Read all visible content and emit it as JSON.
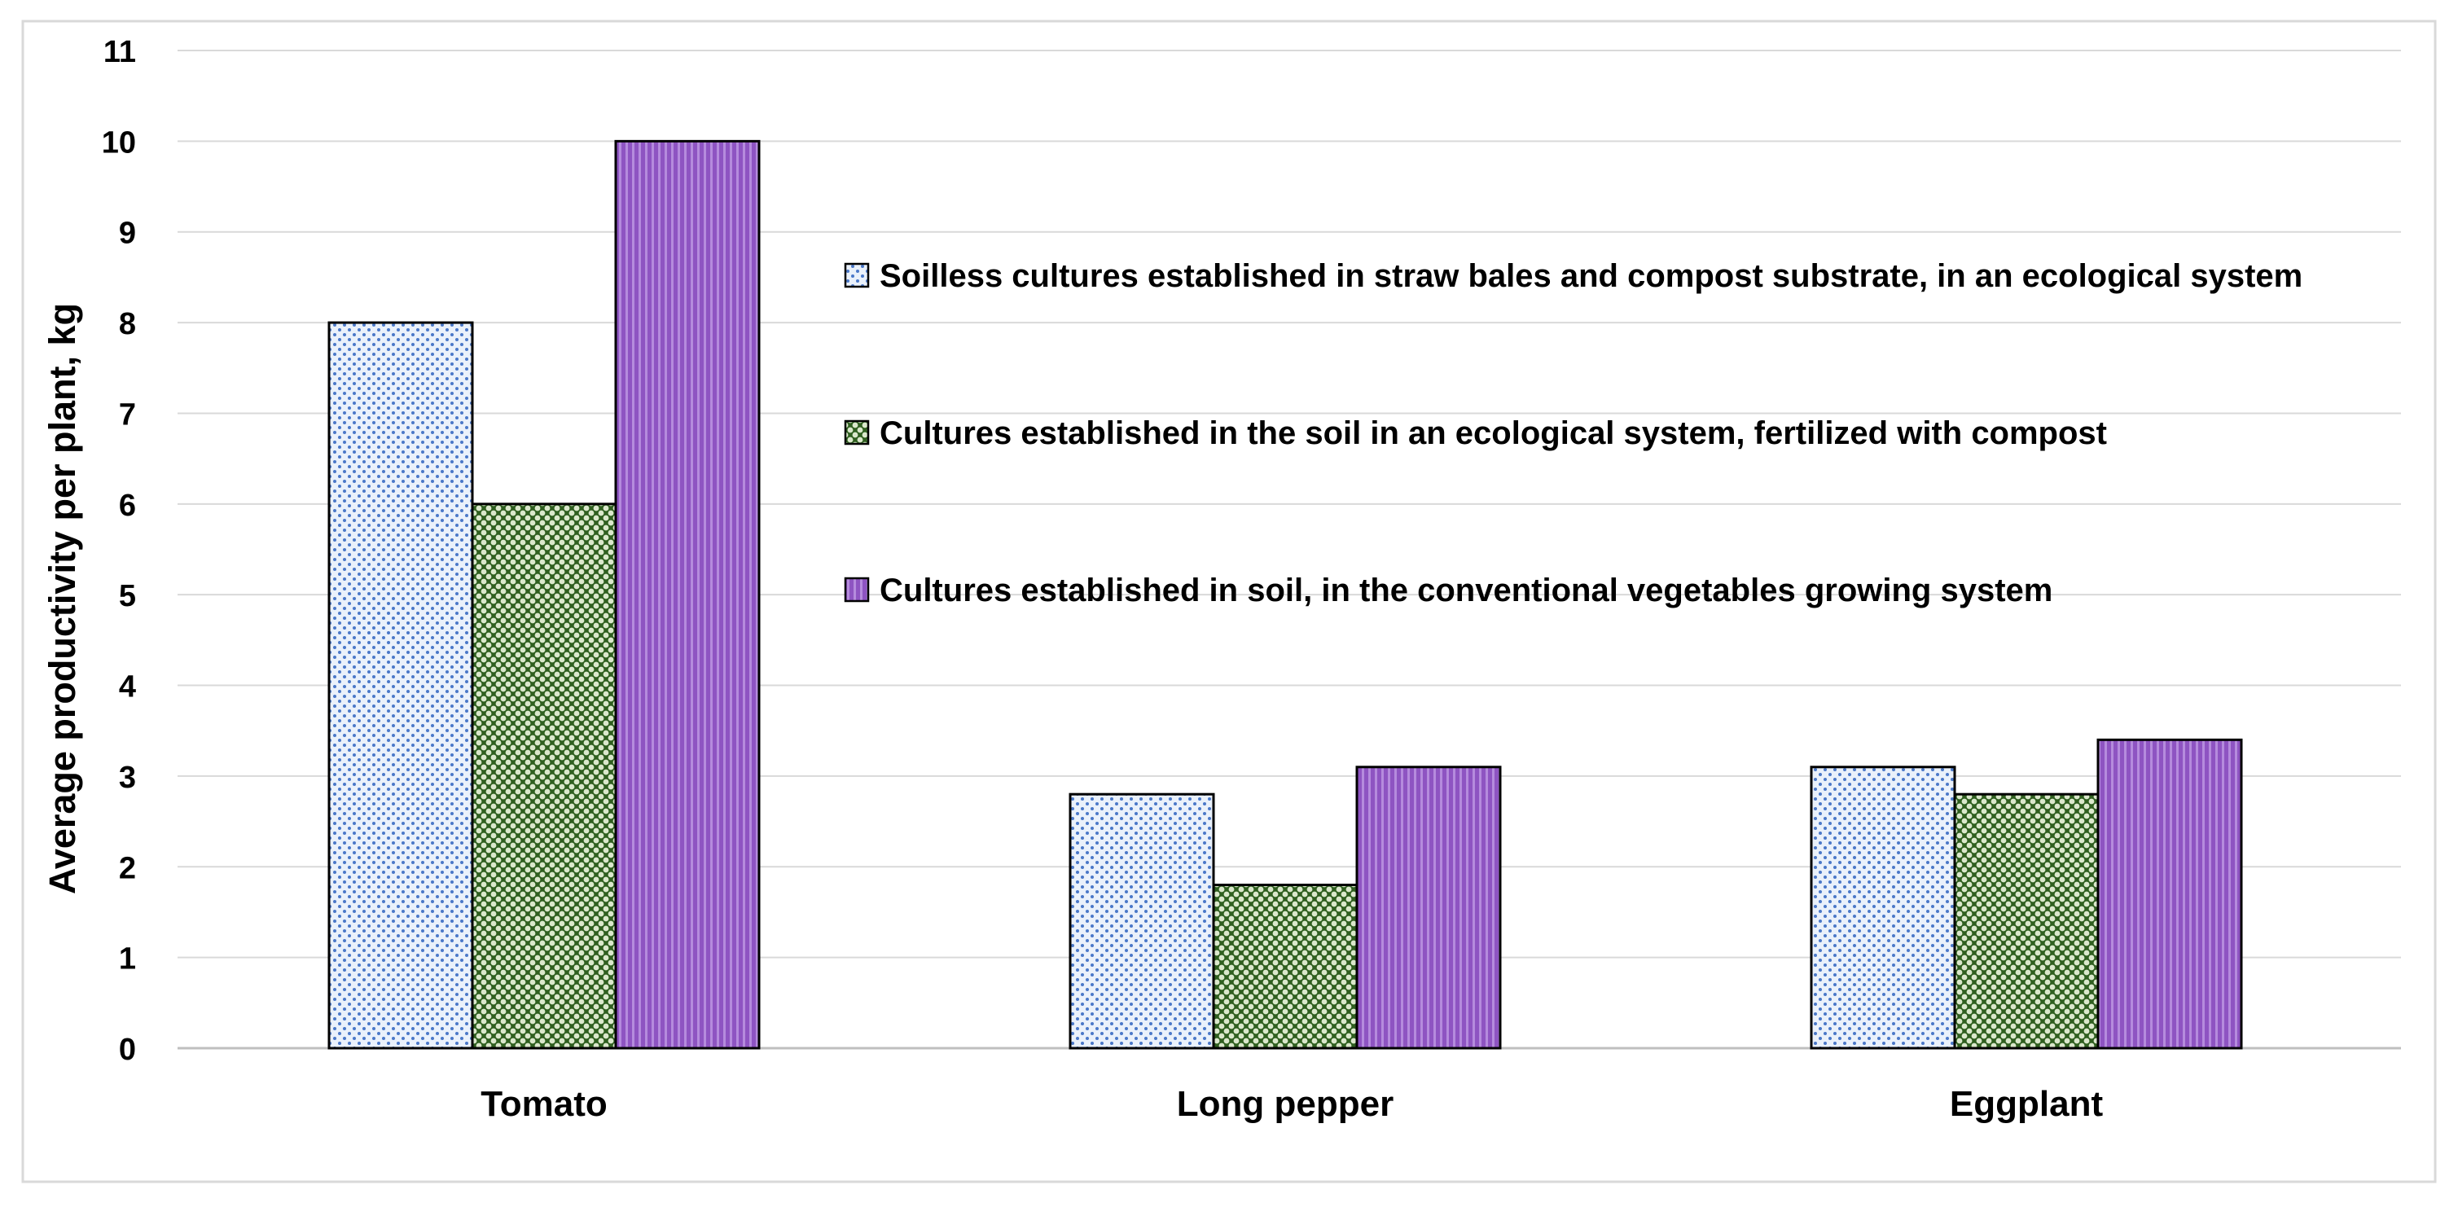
{
  "chart_data": {
    "type": "bar",
    "categories": [
      "Tomato",
      "Long pepper",
      "Eggplant"
    ],
    "series": [
      {
        "name": "Soilless cultures established in straw bales and compost substrate, in an ecological system",
        "values": [
          8,
          2.8,
          3.1
        ],
        "pattern": "dots",
        "fill": "#eaf1fb",
        "accent": "#4a78c8"
      },
      {
        "name": "Cultures established in the soil in an ecological system, fertilized with compost",
        "values": [
          6,
          1.8,
          2.8
        ],
        "pattern": "checker",
        "fill": "#2f5f1f",
        "accent": "#e8f0dc"
      },
      {
        "name": "Cultures established in soil, in the conventional vegetables growing system",
        "values": [
          10,
          3.1,
          3.4
        ],
        "pattern": "stripes",
        "fill": "#8e54c2",
        "accent": "#c9a8e8"
      }
    ],
    "title": "",
    "xlabel": "",
    "ylabel": "Average productivity per plant, kg",
    "ylim": [
      0,
      11
    ],
    "yticks": [
      "0",
      "1",
      "2",
      "3",
      "4",
      "5",
      "6",
      "7",
      "8",
      "9",
      "10",
      "11"
    ],
    "grid": true,
    "legend_position": "right-middle, inside plot"
  }
}
